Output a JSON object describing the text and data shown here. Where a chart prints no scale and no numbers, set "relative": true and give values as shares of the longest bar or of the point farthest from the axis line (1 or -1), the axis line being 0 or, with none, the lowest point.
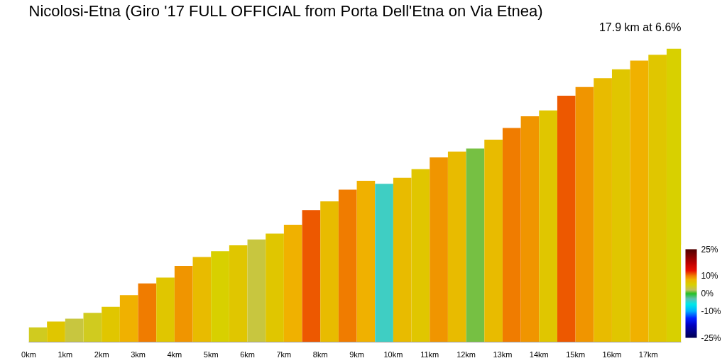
{
  "chart_data": {
    "type": "bar",
    "relative": true,
    "title": "Nicolosi-Etna (Giro '17 FULL OFFICIAL from Porta Dell'Etna on Via Etnea)",
    "subtitle": "17.9 km at 6.6%",
    "x": [
      0.25,
      0.75,
      1.25,
      1.75,
      2.25,
      2.75,
      3.25,
      3.75,
      4.25,
      4.75,
      5.25,
      5.75,
      6.25,
      6.75,
      7.25,
      7.75,
      8.25,
      8.75,
      9.25,
      9.75,
      10.25,
      10.75,
      11.25,
      11.75,
      12.25,
      12.75,
      13.25,
      13.75,
      14.25,
      14.75,
      15.25,
      15.75,
      16.25,
      16.75,
      17.25,
      17.7
    ],
    "values": [
      0.05,
      0.07,
      0.08,
      0.1,
      0.12,
      0.16,
      0.2,
      0.22,
      0.26,
      0.29,
      0.31,
      0.33,
      0.35,
      0.37,
      0.4,
      0.45,
      0.48,
      0.52,
      0.55,
      0.54,
      0.56,
      0.59,
      0.63,
      0.65,
      0.66,
      0.69,
      0.73,
      0.77,
      0.79,
      0.84,
      0.87,
      0.9,
      0.93,
      0.96,
      0.98,
      1.0
    ],
    "cvalues": [
      4,
      6,
      3,
      4,
      6,
      8,
      10,
      6,
      9,
      7,
      5,
      6,
      3,
      6,
      8,
      11,
      7,
      10,
      8,
      -4,
      7,
      6,
      9,
      7,
      1,
      7,
      10,
      9,
      6,
      11,
      9,
      7,
      6,
      8,
      6,
      5
    ],
    "xlim": [
      0,
      17.9
    ],
    "xticks": [
      {
        "value": 0,
        "label": "0km"
      },
      {
        "value": 1,
        "label": "1km"
      },
      {
        "value": 2,
        "label": "2km"
      },
      {
        "value": 3,
        "label": "3km"
      },
      {
        "value": 4,
        "label": "4km"
      },
      {
        "value": 5,
        "label": "5km"
      },
      {
        "value": 6,
        "label": "6km"
      },
      {
        "value": 7,
        "label": "7km"
      },
      {
        "value": 8,
        "label": "8km"
      },
      {
        "value": 9,
        "label": "9km"
      },
      {
        "value": 10,
        "label": "10km"
      },
      {
        "value": 11,
        "label": "11km"
      },
      {
        "value": 12,
        "label": "12km"
      },
      {
        "value": 13,
        "label": "13km"
      },
      {
        "value": 14,
        "label": "14km"
      },
      {
        "value": 15,
        "label": "15km"
      },
      {
        "value": 16,
        "label": "16km"
      },
      {
        "value": 17,
        "label": "17km"
      }
    ],
    "clim": [
      -25,
      25
    ],
    "cticks": [
      {
        "value": 25,
        "label": "25%"
      },
      {
        "value": 10,
        "label": "10%"
      },
      {
        "value": 0,
        "label": "0%"
      },
      {
        "value": -10,
        "label": "-10%"
      },
      {
        "value": -25,
        "label": "-25%"
      }
    ]
  }
}
